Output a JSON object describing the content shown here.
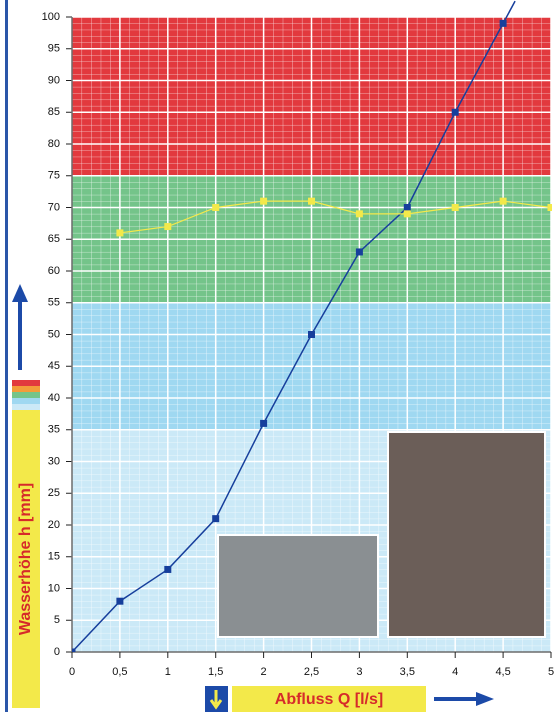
{
  "chart_data": {
    "type": "line",
    "y_label": "Wasserhöhe h [mm]",
    "x_label": "Abfluss Q [l/s]",
    "xlim": [
      0,
      5
    ],
    "ylim": [
      0,
      100
    ],
    "xticks": [
      0,
      {
        "value": 0.5,
        "label": "0,5"
      },
      1,
      {
        "value": 1.5,
        "label": "1,5"
      },
      2,
      {
        "value": 2.5,
        "label": "2,5"
      },
      3,
      {
        "value": 3.5,
        "label": "3,5"
      },
      4,
      {
        "value": 4.5,
        "label": "4,5"
      },
      5
    ],
    "yticks": [
      0,
      5,
      10,
      15,
      20,
      25,
      30,
      35,
      40,
      45,
      50,
      55,
      60,
      65,
      70,
      75,
      80,
      85,
      90,
      95,
      100
    ],
    "grid": true,
    "bands": [
      {
        "from": 0,
        "to": 35,
        "color": "#cbe9f7"
      },
      {
        "from": 35,
        "to": 55,
        "color": "#9fd8f1"
      },
      {
        "from": 55,
        "to": 75,
        "color": "#74c48a"
      },
      {
        "from": 75,
        "to": 100,
        "color": "#e2393e"
      }
    ],
    "series": [
      {
        "color": "#173f9c",
        "x": [
          0,
          0.5,
          1,
          1.5,
          2,
          2.5,
          3,
          3.5,
          4,
          4.5
        ],
        "values": [
          0,
          8,
          13,
          21,
          36,
          50,
          63,
          70,
          85,
          99
        ]
      },
      {
        "color": "#f3e94a",
        "x": [
          0.5,
          1,
          1.5,
          2,
          2.5,
          3,
          3.5,
          4,
          4.5,
          5
        ],
        "values": [
          66,
          67,
          70,
          71,
          71,
          69,
          69,
          70,
          71,
          70
        ]
      }
    ]
  }
}
